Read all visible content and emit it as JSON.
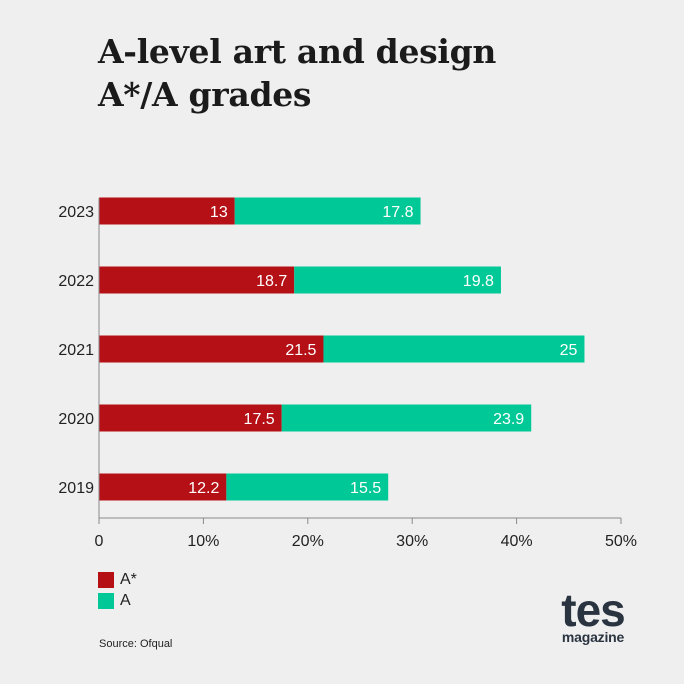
{
  "title_lines": [
    "A-level art and design",
    "A*/A grades"
  ],
  "source": "Source: Ofqual",
  "logo": {
    "main": "tes",
    "sub": "magazine"
  },
  "colors": {
    "astar": "#b41016",
    "a": "#00c896",
    "axis": "#8a8a8a",
    "background": "#efefef"
  },
  "legend": [
    {
      "label": "A*",
      "color": "#b41016"
    },
    {
      "label": "A",
      "color": "#00c896"
    }
  ],
  "chart_data": {
    "type": "bar",
    "orientation": "horizontal",
    "stacked": true,
    "categories": [
      "2023",
      "2022",
      "2021",
      "2020",
      "2019"
    ],
    "series": [
      {
        "name": "A*",
        "values": [
          13,
          18.7,
          21.5,
          17.5,
          12.2
        ]
      },
      {
        "name": "A",
        "values": [
          17.8,
          19.8,
          25,
          23.9,
          15.5
        ]
      }
    ],
    "xlim": [
      0,
      50
    ],
    "xticks": [
      "0",
      "10%",
      "20%",
      "30%",
      "40%",
      "50%"
    ],
    "grid": false,
    "legend_position": "bottom-left"
  }
}
